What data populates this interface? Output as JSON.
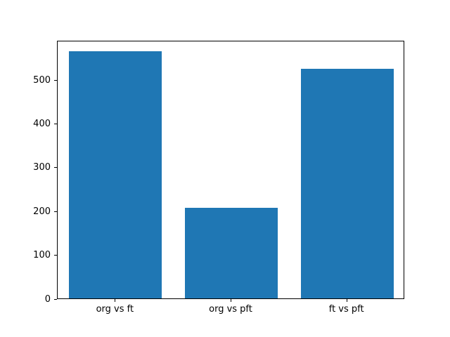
{
  "chart_data": {
    "type": "bar",
    "categories": [
      "org vs ft",
      "org vs pft",
      "ft vs pft"
    ],
    "values": [
      565,
      207,
      525
    ],
    "title": "",
    "xlabel": "",
    "ylabel": "",
    "ylim": [
      0,
      590
    ],
    "yticks": [
      0,
      100,
      200,
      300,
      400,
      500
    ],
    "bar_color": "#1f77b4",
    "background_color": "#ffffff",
    "axis_color": "#000000",
    "grid": false,
    "legend": false,
    "bar_width_fraction": 0.8
  }
}
